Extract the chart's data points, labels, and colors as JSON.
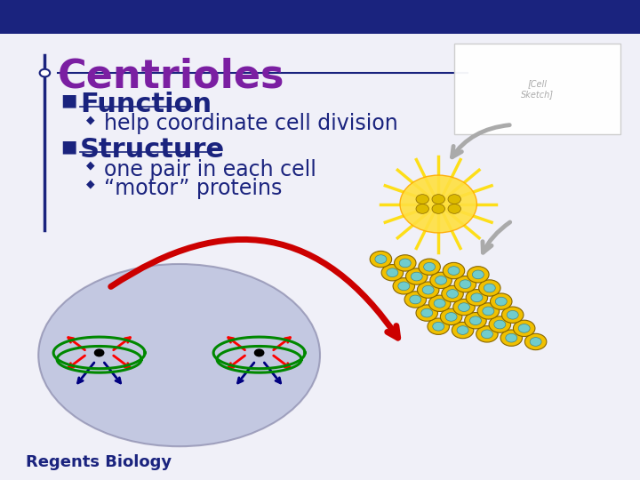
{
  "bg_color": "#f0f0f8",
  "top_bar_color": "#1a237e",
  "left_bar_color": "#1a237e",
  "title": "Centrioles",
  "title_color": "#7b1fa2",
  "title_fontsize": 32,
  "bullet1_label": "Function",
  "bullet2_label": "Structure",
  "bullet_color": "#1a237e",
  "bullet_fontsize": 22,
  "sub1": "help coordinate cell division",
  "sub2a": "one pair in each cell",
  "sub2b": "“motor” proteins",
  "sub_color": "#1a237e",
  "sub_fontsize": 17,
  "diamond_color": "#1a237e",
  "footer": "Regents Biology",
  "footer_color": "#1a237e",
  "footer_fontsize": 13,
  "ellipse_color": "#b0b8d8",
  "ellipse_alpha": 0.7,
  "red_arrow_color": "#cc0000",
  "gray_arrow_color": "#aaaaaa"
}
